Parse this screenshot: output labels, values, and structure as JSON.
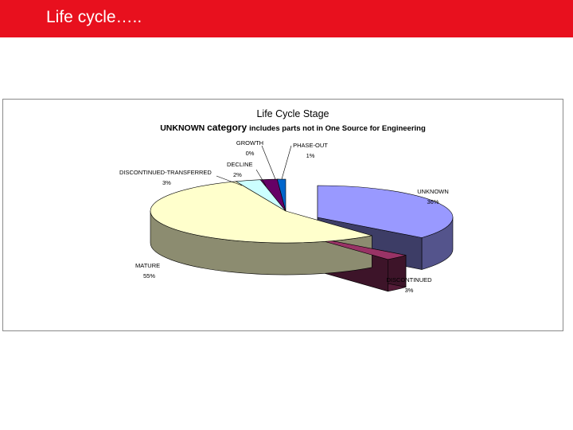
{
  "slide": {
    "title": "Life cycle…..",
    "accent_color": "#e8101e"
  },
  "chart_data": {
    "type": "pie",
    "title": "Life Cycle Stage",
    "subtitle_parts": [
      "UNKNOWN",
      "category",
      "includes parts not in One Source for Engineering"
    ],
    "three_d": true,
    "legend": "none",
    "slices": [
      {
        "label": "UNKNOWN",
        "value": 36,
        "display": "36%",
        "color": "#9999ff"
      },
      {
        "label": "DISCONTINUED",
        "value": 3,
        "display": "3%",
        "color": "#993366"
      },
      {
        "label": "MATURE",
        "value": 55,
        "display": "55%",
        "color": "#ffffcc"
      },
      {
        "label": "DISCONTINUED-TRANSFERRED",
        "value": 3,
        "display": "3%",
        "color": "#ccffff"
      },
      {
        "label": "DECLINE",
        "value": 2,
        "display": "2%",
        "color": "#660066"
      },
      {
        "label": "GROWTH",
        "value": 0,
        "display": "0%",
        "color": "#ff8080"
      },
      {
        "label": "PHASE-OUT",
        "value": 1,
        "display": "1%",
        "color": "#0066cc"
      }
    ]
  }
}
